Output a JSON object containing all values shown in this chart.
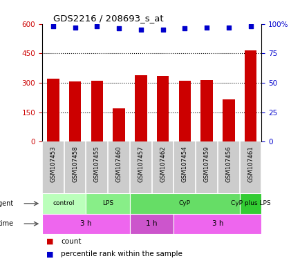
{
  "title": "GDS2216 / 208693_s_at",
  "samples": [
    "GSM107453",
    "GSM107458",
    "GSM107455",
    "GSM107460",
    "GSM107457",
    "GSM107462",
    "GSM107454",
    "GSM107459",
    "GSM107456",
    "GSM107461"
  ],
  "counts": [
    320,
    307,
    312,
    170,
    340,
    335,
    312,
    315,
    215,
    465
  ],
  "percentile": [
    98,
    97,
    98,
    96,
    95,
    95,
    96,
    97,
    97,
    98
  ],
  "bar_color": "#cc0000",
  "dot_color": "#0000cc",
  "ylim_left": [
    0,
    600
  ],
  "ylim_right": [
    0,
    100
  ],
  "yticks_left": [
    0,
    150,
    300,
    450,
    600
  ],
  "yticks_right": [
    0,
    25,
    50,
    75,
    100
  ],
  "agent_labels": [
    {
      "text": "control",
      "start": 0,
      "end": 2,
      "color": "#bbffbb"
    },
    {
      "text": "LPS",
      "start": 2,
      "end": 4,
      "color": "#88ee88"
    },
    {
      "text": "CyP",
      "start": 4,
      "end": 9,
      "color": "#66dd66"
    },
    {
      "text": "CyP plus LPS",
      "start": 9,
      "end": 10,
      "color": "#33cc33"
    }
  ],
  "time_labels": [
    {
      "text": "3 h",
      "start": 0,
      "end": 4,
      "color": "#ee66ee"
    },
    {
      "text": "1 h",
      "start": 4,
      "end": 6,
      "color": "#cc55cc"
    },
    {
      "text": "3 h",
      "start": 6,
      "end": 10,
      "color": "#ee66ee"
    }
  ],
  "sample_bg_color": "#cccccc",
  "sample_divider_color": "#ffffff",
  "legend_count_color": "#cc0000",
  "legend_dot_color": "#0000cc",
  "background_color": "#ffffff",
  "tick_label_color_left": "#cc0000",
  "tick_label_color_right": "#0000cc",
  "gridline_color": "#000000",
  "border_color": "#000000"
}
